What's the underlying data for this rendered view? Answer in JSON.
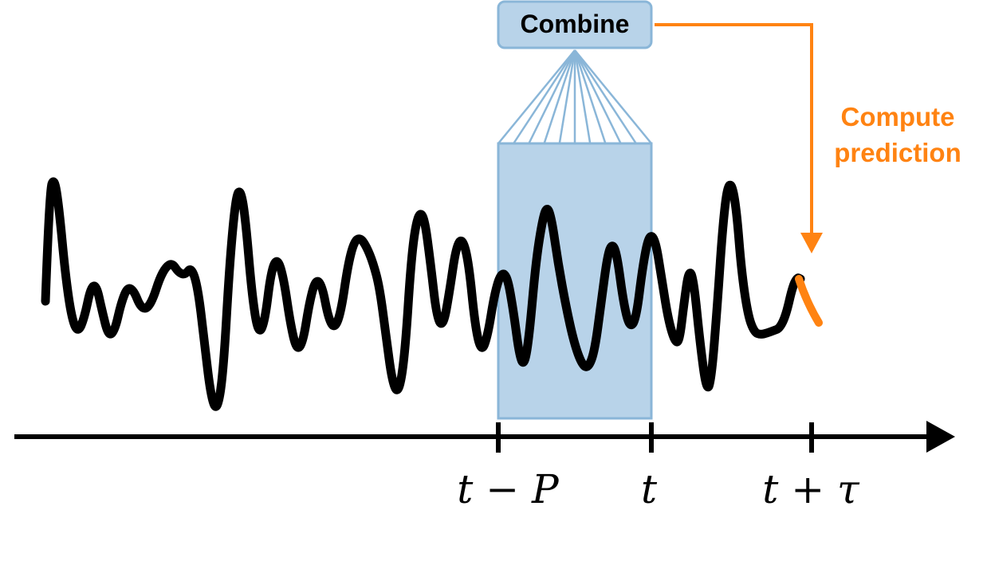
{
  "diagram": {
    "combine_label": "Combine",
    "prediction_label_line1": "Compute",
    "prediction_label_line2": "prediction",
    "ticks": [
      {
        "label": "t − P"
      },
      {
        "label": "t"
      },
      {
        "label": "t + τ"
      }
    ],
    "colors": {
      "window_fill": "#b8d3e9",
      "window_stroke": "#8ab6d8",
      "combine_fill": "#b8d3e9",
      "fan_lines": "#8ab6d8",
      "accent": "#ff8312",
      "signal": "#000000",
      "axis": "#000000"
    }
  }
}
